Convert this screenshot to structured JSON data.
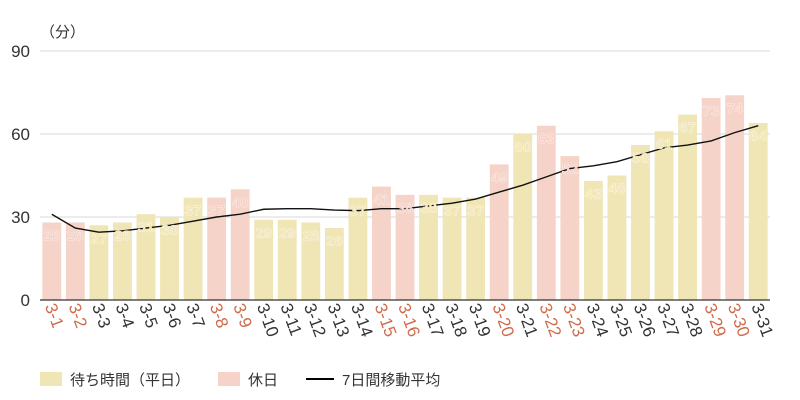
{
  "chart_data": {
    "type": "bar",
    "unit_label": "（分）",
    "y_ticks": [
      "0",
      "30",
      "60",
      "90"
    ],
    "ylim": [
      0,
      90
    ],
    "grid": true,
    "categories": [
      "3-1",
      "3-2",
      "3-3",
      "3-4",
      "3-5",
      "3-6",
      "3-7",
      "3-8",
      "3-9",
      "3-10",
      "3-11",
      "3-12",
      "3-13",
      "3-14",
      "3-15",
      "3-16",
      "3-17",
      "3-18",
      "3-19",
      "3-20",
      "3-21",
      "3-22",
      "3-23",
      "3-24",
      "3-25",
      "3-26",
      "3-27",
      "3-28",
      "3-29",
      "3-30",
      "3-31"
    ],
    "values": [
      28,
      28,
      27,
      28,
      31,
      30,
      37,
      37,
      40,
      29,
      29,
      28,
      26,
      37,
      41,
      38,
      38,
      37,
      37,
      49,
      60,
      63,
      52,
      43,
      45,
      56,
      61,
      67,
      73,
      74,
      64
    ],
    "data_labels": [
      "28",
      "28",
      "27",
      "28",
      "31",
      "30",
      "37",
      "37",
      "40",
      "29",
      "29",
      "28",
      "26",
      "37",
      "41",
      "38",
      "38",
      "37",
      "37",
      "49",
      "60",
      "63",
      "52",
      "43",
      "45",
      "56",
      "61",
      "67",
      "73",
      "74",
      "64"
    ],
    "holiday": [
      true,
      true,
      false,
      false,
      false,
      false,
      false,
      true,
      true,
      false,
      false,
      false,
      false,
      false,
      true,
      true,
      false,
      false,
      false,
      true,
      false,
      true,
      true,
      false,
      false,
      false,
      false,
      false,
      true,
      true,
      false
    ],
    "moving_average": [
      31,
      26,
      24.5,
      25,
      26,
      27,
      28.5,
      30,
      31,
      32.8,
      33,
      33,
      32.5,
      32.3,
      33,
      33,
      34,
      35,
      36.5,
      39,
      41.5,
      44.5,
      47.5,
      48.5,
      50,
      52.5,
      55,
      56,
      57.5,
      60.5,
      63
    ],
    "series": [
      {
        "name": "待ち時間（平日）",
        "color": "#efe5b5"
      },
      {
        "name": "休日",
        "color": "#f5d3c8"
      },
      {
        "name": "7日間移動平均",
        "color": "#000000"
      }
    ],
    "label_colors": {
      "weekday_value": "#f2e6b6",
      "holiday_value": "#f5cfc2",
      "weekday_date": "#333333",
      "holiday_date": "#d06a4a"
    },
    "legend": "bottom-left"
  }
}
